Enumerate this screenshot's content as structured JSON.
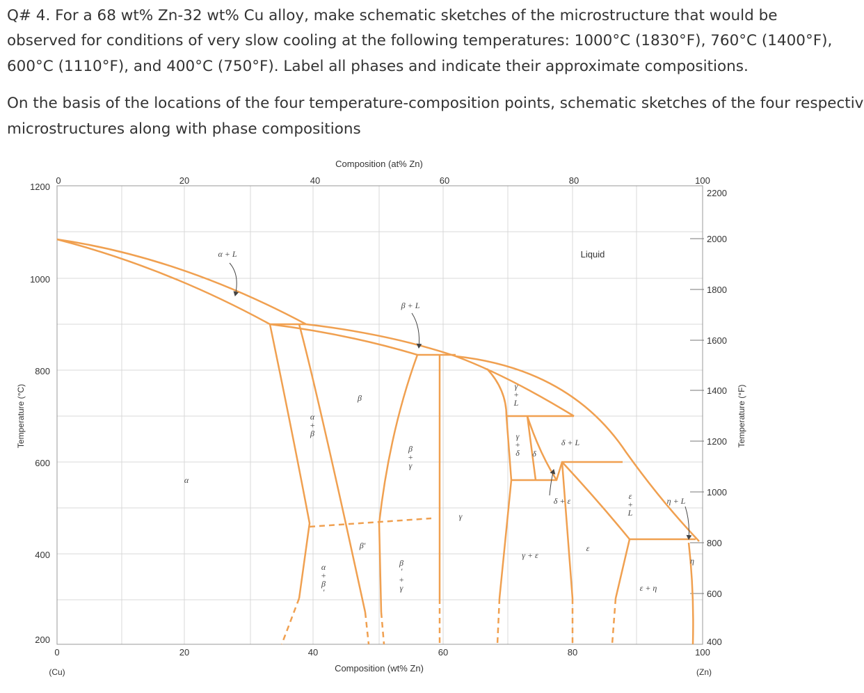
{
  "question": {
    "lines": [
      "Q# 4. For a 68 wt% Zn-32 wt% Cu alloy, make schematic sketches of the microstructure that would be",
      "observed for conditions of very slow cooling at the following temperatures: 1000°C (1830°F), 760°C (1400°F),",
      "600°C (1110°F), and 400°C (750°F). Label all phases and indicate their approximate compositions."
    ]
  },
  "answer": {
    "lines": [
      "On the basis of the locations of the four temperature-composition points, schematic sketches of the four respective",
      "microstructures along with phase compositions"
    ]
  },
  "figure": {
    "top_axis_title": "Composition (at% Zn)",
    "bottom_axis_title": "Composition (wt% Zn)",
    "left_axis_title": "Temperature (°C)",
    "right_axis_title": "Temperature (°F)",
    "left_ticks": [
      "1200",
      "1000",
      "800",
      "600",
      "400",
      "200"
    ],
    "top_ticks": [
      "0",
      "20",
      "40",
      "60",
      "80",
      "100"
    ],
    "bottom_ticks": [
      "0",
      "20",
      "40",
      "60",
      "80",
      "100"
    ],
    "bottom_end_labels": [
      "(Cu)",
      "(Zn)"
    ],
    "right_ticks": [
      "2200",
      "2000",
      "1800",
      "1600",
      "1400",
      "1200",
      "1000",
      "800",
      "600",
      "400"
    ],
    "regions": [
      "α + L",
      "Liquid",
      "β + L",
      "β",
      "α+β",
      "α",
      "β+γ",
      "γ",
      "γ+L",
      "γ+δ",
      "δ",
      "δ + L",
      "δ + ε",
      "ε+L",
      "η + L",
      "β′",
      "α+β′",
      "β′+γ",
      "γ + ε",
      "ε",
      "η",
      "ε + η"
    ]
  }
}
